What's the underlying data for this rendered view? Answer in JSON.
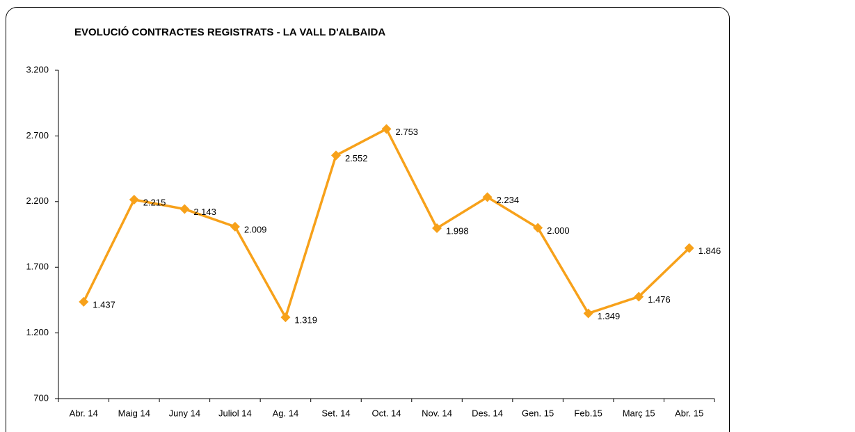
{
  "chart_data": {
    "type": "line",
    "title": "EVOLUCIÓ CONTRACTES REGISTRATS - LA VALL D'ALBAIDA",
    "categories": [
      "Abr. 14",
      "Maig 14",
      "Juny 14",
      "Juliol 14",
      "Ag. 14",
      "Set. 14",
      "Oct. 14",
      "Nov. 14",
      "Des. 14",
      "Gen. 15",
      "Feb.15",
      "Març 15",
      "Abr. 15"
    ],
    "series": [
      {
        "name": "Contractes",
        "color": "#f7a11a",
        "values": [
          1437,
          2215,
          2143,
          2009,
          1319,
          2552,
          2753,
          1998,
          2234,
          2000,
          1349,
          1476,
          1846
        ],
        "value_labels": [
          "1.437",
          "2.215",
          "2.143",
          "2.009",
          "1.319",
          "2.552",
          "2.753",
          "1.998",
          "2.234",
          "2.000",
          "1.349",
          "1.476",
          "1.846"
        ]
      }
    ],
    "ylim": [
      700,
      3200
    ],
    "yticks": [
      700,
      {
        "value": 1200,
        "label": "1.200"
      },
      {
        "value": 1700,
        "label": "1.700"
      },
      {
        "value": 2200,
        "label": "2.200"
      },
      {
        "value": 2700,
        "label": "2.700"
      },
      {
        "value": 3200,
        "label": "3.200"
      }
    ],
    "grid": false
  }
}
